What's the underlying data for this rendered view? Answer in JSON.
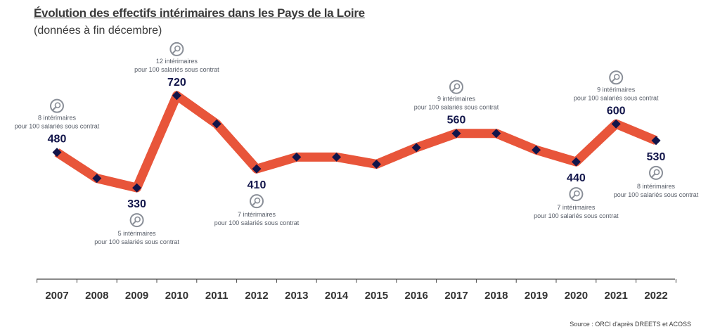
{
  "title": "Évolution des effectifs intérimaires dans les Pays de la Loire",
  "subtitle": "(données à fin décembre)",
  "source": "Source : ORCI d'après DREETS et ACOSS",
  "colors": {
    "line": "#e8553a",
    "marker": "#12154a",
    "value_text": "#12154a",
    "annotation_text": "#555b66",
    "icon": "#8a8f98",
    "axis": "#444444"
  },
  "chart_data": {
    "type": "line",
    "title": "Évolution des effectifs intérimaires dans les Pays de la Loire",
    "subtitle": "(données à fin décembre)",
    "x": [
      "2007",
      "2008",
      "2009",
      "2010",
      "2011",
      "2012",
      "2013",
      "2014",
      "2015",
      "2016",
      "2017",
      "2018",
      "2019",
      "2020",
      "2021",
      "2022"
    ],
    "values": [
      480,
      370,
      330,
      720,
      600,
      410,
      460,
      460,
      430,
      500,
      560,
      560,
      490,
      440,
      600,
      530
    ],
    "ylim": [
      250,
      800
    ],
    "grid": false,
    "legend": "none",
    "data_labels": [
      {
        "year": "2007",
        "value": "480"
      },
      {
        "year": "2009",
        "value": "330"
      },
      {
        "year": "2010",
        "value": "720"
      },
      {
        "year": "2012",
        "value": "410"
      },
      {
        "year": "2017",
        "value": "560"
      },
      {
        "year": "2020",
        "value": "440"
      },
      {
        "year": "2021",
        "value": "600"
      },
      {
        "year": "2022",
        "value": "530"
      }
    ],
    "annotations": [
      {
        "year": "2007",
        "count": "8 intérimaires",
        "text": "pour 100 salariés sous contrat",
        "position": "above"
      },
      {
        "year": "2009",
        "count": "5 intérimaires",
        "text": "pour 100 salariés sous contrat",
        "position": "below"
      },
      {
        "year": "2010",
        "count": "12 intérimaires",
        "text": "pour 100 salariés sous contrat",
        "position": "above"
      },
      {
        "year": "2012",
        "count": "7 intérimaires",
        "text": "pour 100 salariés sous contrat",
        "position": "below"
      },
      {
        "year": "2017",
        "count": "9 intérimaires",
        "text": "pour 100 salariés sous contrat",
        "position": "above"
      },
      {
        "year": "2020",
        "count": "7 intérimaires",
        "text": "pour 100 salariés sous contrat",
        "position": "below"
      },
      {
        "year": "2021",
        "count": "9 intérimaires",
        "text": "pour 100 salariés sous contrat",
        "position": "above"
      },
      {
        "year": "2022",
        "count": "8 intérimaires",
        "text": "pour 100 salariés sous contrat",
        "position": "below"
      }
    ]
  }
}
